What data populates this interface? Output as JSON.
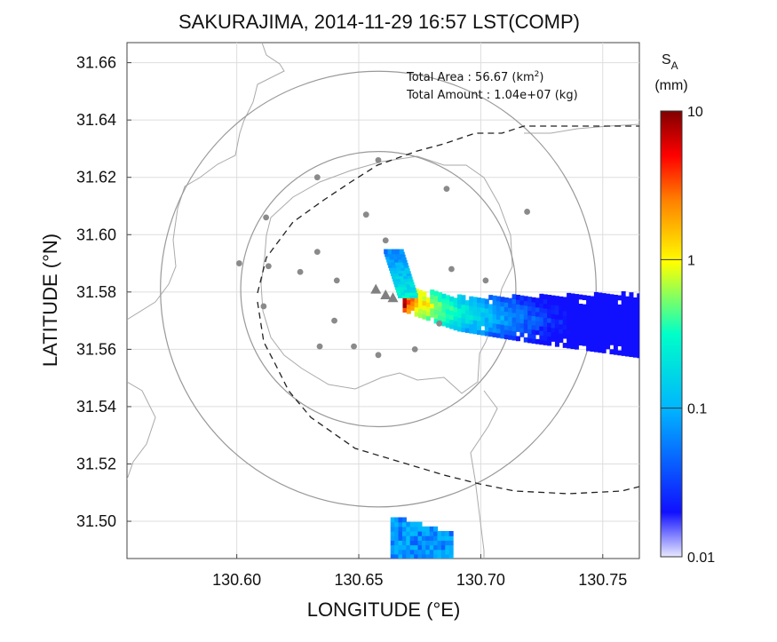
{
  "chart_data": {
    "type": "heatmap",
    "title": "SAKURAJIMA, 2014-11-29 16:57 LST(COMP)",
    "xlabel": "LONGITUDE (°E)",
    "ylabel": "LATITUDE (°N)",
    "xlim": [
      130.555,
      130.765
    ],
    "ylim": [
      31.487,
      31.667
    ],
    "xticks": [
      "130.60",
      "130.65",
      "130.70",
      "130.75"
    ],
    "yticks": [
      "31.50",
      "31.52",
      "31.54",
      "31.56",
      "31.58",
      "31.60",
      "31.62",
      "31.64",
      "31.66"
    ],
    "grid": true,
    "annotations": {
      "area_label": "Total Area   : 56.67 (km",
      "area_sup": "2",
      "area_close": ")",
      "amount_label": "Total Amount : 1.04e+07 (kg)"
    },
    "colorbar": {
      "label_main": "S",
      "label_sub": "A",
      "unit": "(mm)",
      "scale": "log",
      "range": [
        0.01,
        10
      ],
      "ticks": [
        "10",
        "1",
        "0.1",
        "0.01"
      ],
      "colors": [
        "#e8e8ff",
        "#0000ff",
        "#00c8ff",
        "#00ffc0",
        "#ffff00",
        "#ff8000",
        "#ff0000",
        "#800000"
      ]
    },
    "stations": [
      [
        130.612,
        31.606
      ],
      [
        130.633,
        31.62
      ],
      [
        130.658,
        31.626
      ],
      [
        130.686,
        31.616
      ],
      [
        130.653,
        31.607
      ],
      [
        130.719,
        31.608
      ],
      [
        130.601,
        31.59
      ],
      [
        130.613,
        31.589
      ],
      [
        130.626,
        31.587
      ],
      [
        130.633,
        31.594
      ],
      [
        130.641,
        31.584
      ],
      [
        130.661,
        31.598
      ],
      [
        130.688,
        31.588
      ],
      [
        130.702,
        31.584
      ],
      [
        130.611,
        31.575
      ],
      [
        130.64,
        31.57
      ],
      [
        130.634,
        31.561
      ],
      [
        130.648,
        31.561
      ],
      [
        130.658,
        31.558
      ],
      [
        130.673,
        31.56
      ],
      [
        130.683,
        31.569
      ]
    ],
    "vents": [
      [
        130.657,
        31.581
      ],
      [
        130.661,
        31.579
      ],
      [
        130.664,
        31.578
      ]
    ],
    "circles": [
      {
        "center": [
          130.658,
          31.581
        ],
        "radius_deg_lat": 0.076
      },
      {
        "center": [
          130.658,
          31.581
        ],
        "radius_deg_lat": 0.048
      }
    ],
    "plume": {
      "axis": [
        [
          130.668,
          31.577
        ],
        [
          130.69,
          31.572
        ],
        [
          130.72,
          31.57
        ],
        [
          130.765,
          31.568
        ]
      ],
      "arm": [
        [
          130.67,
          31.578
        ],
        [
          130.664,
          31.594
        ]
      ],
      "peak_value": 10,
      "far_value": 0.05
    },
    "south_patch": {
      "lon": [
        130.663,
        130.687
      ],
      "lat": [
        31.487,
        31.501
      ],
      "value": 0.08
    }
  }
}
